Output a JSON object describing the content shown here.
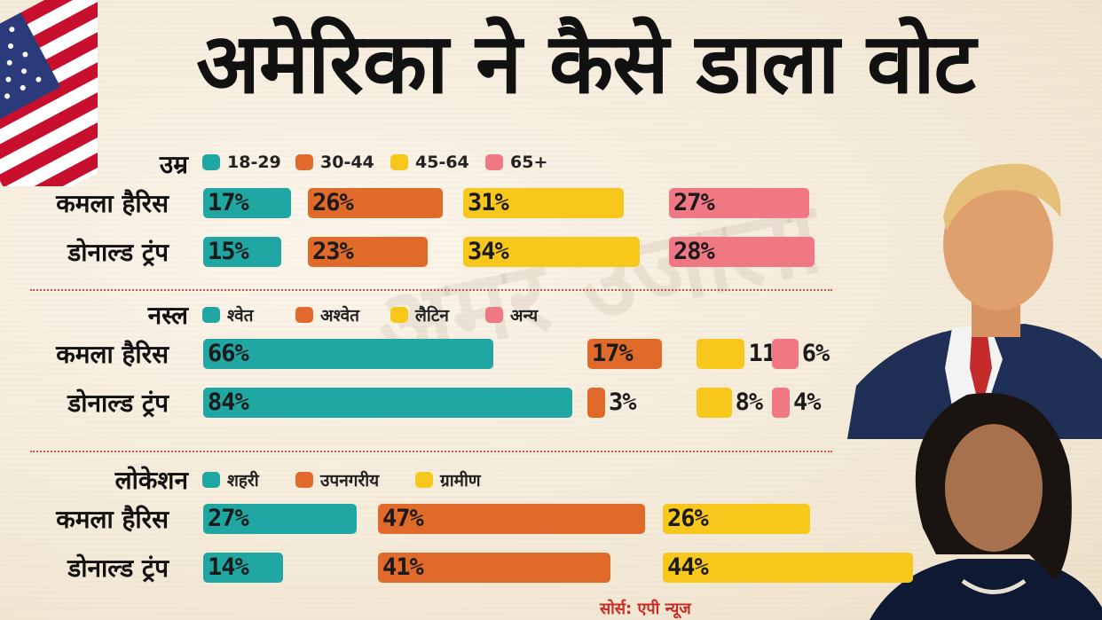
{
  "title": "अमेरिका ने कैसे डाला वोट",
  "source": "सोर्स: एपी न्यूज",
  "watermark": "अमर उजाला",
  "colors": {
    "teal": "#20a6a3",
    "orange": "#df6a2a",
    "yellow": "#f7c71c",
    "pink": "#f07885"
  },
  "chart_data": [
    {
      "type": "bar",
      "title": "उम्र",
      "legend": [
        "18-29",
        "30-44",
        "45-64",
        "65+"
      ],
      "series": [
        {
          "name": "कमला हैरिस",
          "values": [
            17,
            26,
            31,
            27
          ],
          "labels": [
            "17%",
            "26%",
            "31%",
            "27%"
          ]
        },
        {
          "name": "डोनाल्ड ट्रंप",
          "values": [
            15,
            23,
            34,
            28
          ],
          "labels": [
            "15%",
            "23%",
            "34%",
            "28%"
          ]
        }
      ]
    },
    {
      "type": "bar",
      "title": "नस्ल",
      "legend": [
        "श्वेत",
        "अश्वेत",
        "लैटिन",
        "अन्य"
      ],
      "series": [
        {
          "name": "कमला हैरिस",
          "values": [
            66,
            17,
            11,
            6
          ],
          "labels": [
            "66%",
            "17%",
            "11%",
            "6%"
          ]
        },
        {
          "name": "डोनाल्ड ट्रंप",
          "values": [
            84,
            3,
            8,
            4
          ],
          "labels": [
            "84%",
            "3%",
            "8%",
            "4%"
          ]
        }
      ]
    },
    {
      "type": "bar",
      "title": "लोकेशन",
      "legend": [
        "शहरी",
        "उपनगरीय",
        "ग्रामीण"
      ],
      "series": [
        {
          "name": "कमला हैरिस",
          "values": [
            27,
            47,
            26
          ],
          "labels": [
            "27%",
            "47%",
            "26%"
          ]
        },
        {
          "name": "डोनाल्ड ट्रंप",
          "values": [
            14,
            41,
            44
          ],
          "labels": [
            "14%",
            "41%",
            "44%"
          ]
        }
      ]
    }
  ]
}
